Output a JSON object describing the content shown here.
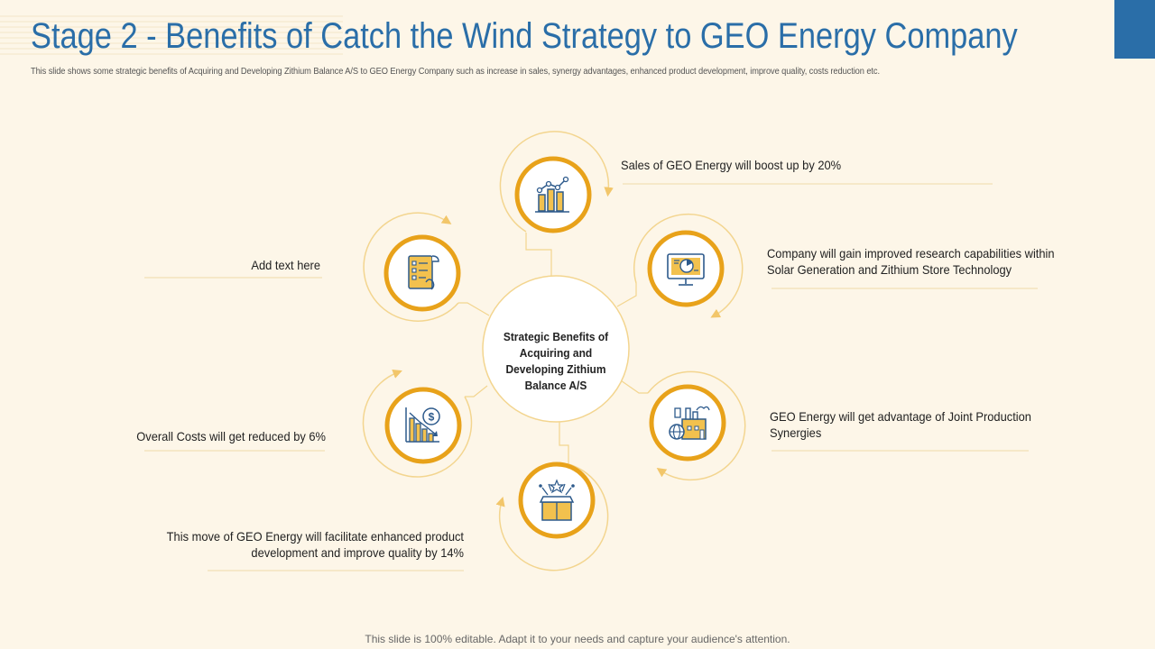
{
  "title": "Stage 2 - Benefits of Catch the Wind Strategy to GEO Energy Company",
  "subtitle": "This slide shows some strategic benefits of Acquiring and Developing Zithium Balance A/S to GEO Energy Company such as increase in sales, synergy advantages, enhanced product development, improve quality, costs reduction etc.",
  "center": {
    "text": "Strategic Benefits of Acquiring and Developing Zithium Balance A/S"
  },
  "benefits": [
    {
      "label": "Sales of GEO Energy will boost up by 20%",
      "icon": "bar-chart-growth-icon"
    },
    {
      "label": "Company will gain improved research capabilities within Solar Generation and Zithium Store Technology",
      "icon": "monitor-analytics-icon"
    },
    {
      "label": "GEO Energy will get advantage of Joint Production Synergies",
      "icon": "factory-globe-icon"
    },
    {
      "label": "This move of GEO Energy will facilitate enhanced product development and improve quality by 14%",
      "icon": "product-box-stars-icon"
    },
    {
      "label": "Overall Costs will get reduced by 6%",
      "icon": "cost-reduction-chart-icon"
    },
    {
      "label": "Add text here",
      "icon": "document-checklist-icon"
    }
  ],
  "footer": "This slide is 100% editable. Adapt it to your needs and capture your audience's attention.",
  "colors": {
    "background": "#fdf6e8",
    "accent_blue": "#2a6ea8",
    "ring_orange": "#e8a21a",
    "ring_light": "#f6d89a",
    "icon_blue": "#2d5a8c",
    "icon_yellow": "#f2c14e"
  }
}
